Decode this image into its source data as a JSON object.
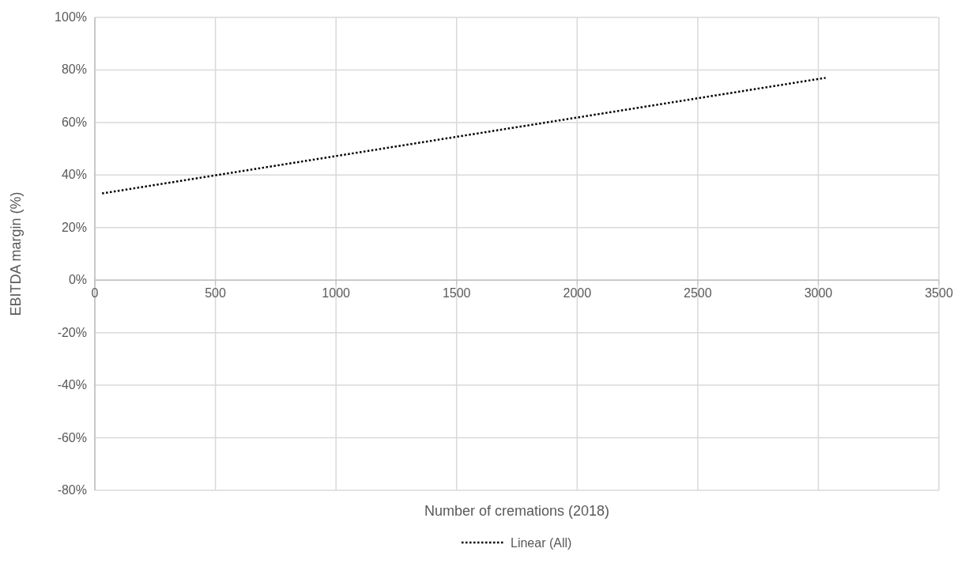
{
  "chart_data": {
    "type": "line",
    "xlabel": "Number of cremations (2018)",
    "ylabel": "EBITDA margin (%)",
    "xlim": [
      0,
      3500
    ],
    "xticks": [
      0,
      500,
      1000,
      1500,
      2000,
      2500,
      3000,
      3500
    ],
    "ylim": [
      -80,
      100
    ],
    "yticks": [
      {
        "value": -80,
        "label": "-80%"
      },
      {
        "value": -60,
        "label": "-60%"
      },
      {
        "value": -40,
        "label": "-40%"
      },
      {
        "value": -20,
        "label": "-20%"
      },
      {
        "value": 0,
        "label": "0%"
      },
      {
        "value": 20,
        "label": "20%"
      },
      {
        "value": 40,
        "label": "40%"
      },
      {
        "value": 60,
        "label": "60%"
      },
      {
        "value": 80,
        "label": "80%"
      },
      {
        "value": 100,
        "label": "100%"
      }
    ],
    "grid": true,
    "legend": "bottom",
    "marker": "none",
    "line_style": "dotted",
    "series": [
      {
        "name": "Linear (All)",
        "color": "#000000",
        "x": [
          30,
          3030
        ],
        "values": [
          33,
          77
        ]
      }
    ]
  }
}
